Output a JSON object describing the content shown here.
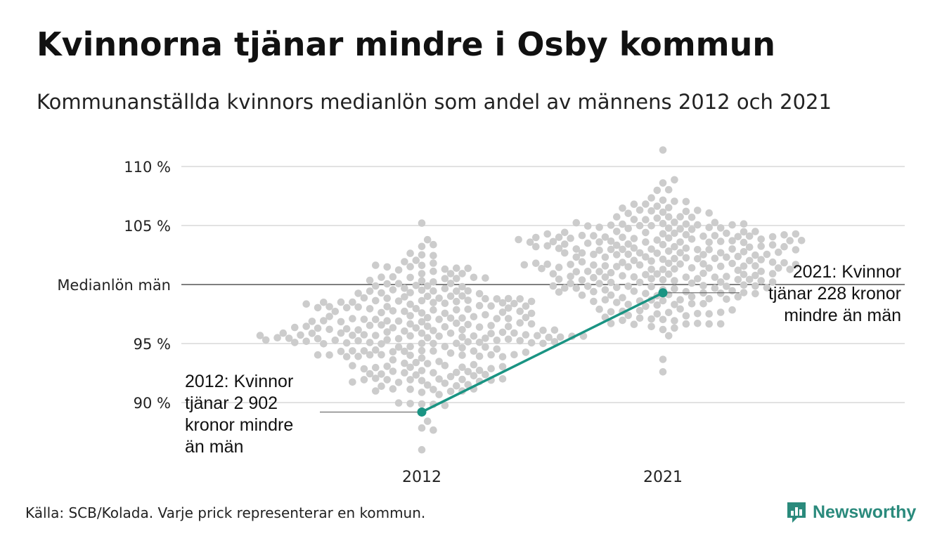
{
  "title": "Kvinnorna tjänar mindre i Osby kommun",
  "subtitle": "Kommunanställda kvinnors medianlön som andel av männens 2012 och 2021",
  "source": "Källa: SCB/Kolada. Varje prick representerar en kommun.",
  "brand": {
    "name": "Newsworthy",
    "icon": "bar-chart-logo-icon"
  },
  "chart_data": {
    "type": "scatter",
    "subtype": "beeswarm",
    "title": "",
    "xlabel": "",
    "ylabel": "",
    "categories": [
      "2012",
      "2021"
    ],
    "ylim": [
      86.5,
      111.5
    ],
    "yticks": [
      {
        "value": 90,
        "label": "90 %"
      },
      {
        "value": 95,
        "label": "95 %"
      },
      {
        "value": 100,
        "label": "Medianlön män"
      },
      {
        "value": 105,
        "label": "105 %"
      },
      {
        "value": 110,
        "label": "110 %"
      }
    ],
    "grid": true,
    "reference_line": {
      "value": 100,
      "label": "Medianlön män"
    },
    "distribution_summary": [
      {
        "year": "2012",
        "approx_min": 86.0,
        "approx_max": 105.2,
        "approx_center": 96.5
      },
      {
        "year": "2021",
        "approx_min": 92.6,
        "approx_max": 111.4,
        "approx_center": 102.0
      }
    ],
    "highlight": {
      "name": "Osby",
      "color": "#1a9483",
      "points": [
        {
          "x": "2012",
          "y": 89.2
        },
        {
          "x": "2021",
          "y": 99.3
        }
      ]
    },
    "dot_color": "#cccccc",
    "annotations": [
      {
        "year": "2012",
        "lines": [
          "2012: Kvinnor",
          "tjänar 2 902",
          "kronor mindre",
          "än män"
        ]
      },
      {
        "year": "2021",
        "lines": [
          "2021: Kvinnor",
          "tjänar 228 kronor",
          "mindre än män"
        ]
      }
    ]
  }
}
